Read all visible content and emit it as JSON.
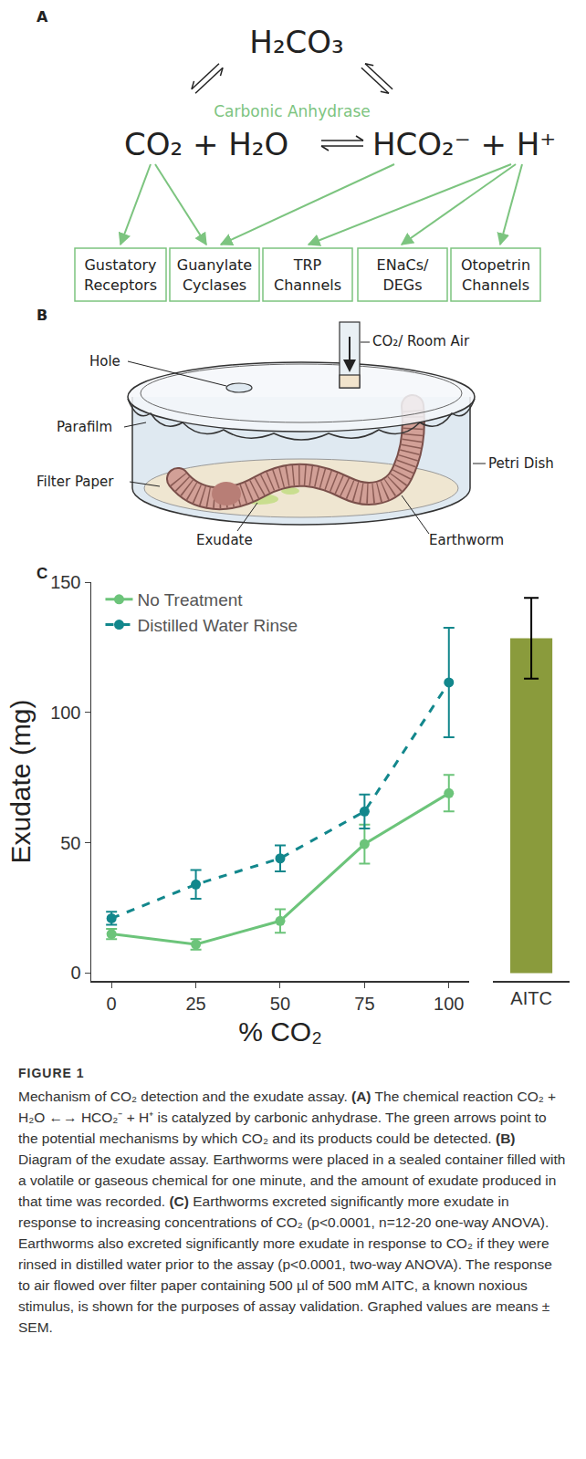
{
  "panels": {
    "A": {
      "letter": "A",
      "top_species": "H₂CO₃",
      "enzyme": "Carbonic Anhydrase",
      "left_side": "CO₂ + H₂O",
      "right_side": "HCO₂⁻ + H⁺",
      "boxes": [
        "Gustatory Receptors",
        "Guanylate Cyclases",
        "TRP Channels",
        "ENaCs/ DEGs",
        "Otopetrin Channels"
      ]
    },
    "B": {
      "letter": "B",
      "labels": {
        "hole": "Hole",
        "parafilm": "Parafilm",
        "filter_paper": "Filter Paper",
        "exudate": "Exudate",
        "gas": "CO₂/ Room Air",
        "dish": "Petri Dish",
        "worm": "Earthworm"
      }
    },
    "C": {
      "letter": "C"
    }
  },
  "chart_data": {
    "type": "line",
    "xlabel": "% CO₂",
    "ylabel": "Exudate (mg)",
    "x": [
      0,
      25,
      50,
      75,
      100
    ],
    "xlim": [
      -6,
      106
    ],
    "xticks": [
      0,
      25,
      50,
      75,
      100
    ],
    "ylim": [
      -3,
      150
    ],
    "yticks": [
      0,
      50,
      100,
      150
    ],
    "grid": false,
    "legend": "upper left",
    "series": [
      {
        "name": "No Treatment",
        "color": "#6cc47a",
        "line_style": "solid",
        "marker": "circle",
        "values": [
          15,
          11,
          20,
          49.5,
          69
        ],
        "errors": [
          2,
          2,
          4.5,
          7.5,
          7
        ]
      },
      {
        "name": "Distilled Water Rinse",
        "color": "#12878c",
        "line_style": "dashed",
        "marker": "circle",
        "values": [
          21,
          34,
          44,
          62,
          111.5
        ],
        "errors": [
          2.5,
          5.5,
          5,
          6.5,
          21
        ]
      }
    ],
    "bar": {
      "type": "bar",
      "categories": [
        "AITC"
      ],
      "values": [
        128.5
      ],
      "errors": [
        15.5
      ],
      "color": "#8a9b3c"
    }
  },
  "caption": {
    "label": "FIGURE 1",
    "segments": [
      {
        "text": "Mechanism of CO₂ detection and the exudate assay. ",
        "bold": false
      },
      {
        "text": "(A)",
        "bold": true
      },
      {
        "text": " The chemical reaction CO₂ + H₂O ←→ HCO₂⁻ + H⁺ is catalyzed by carbonic anhydrase. The green arrows point to the potential mechanisms by which CO₂ and its products could be detected. ",
        "bold": false
      },
      {
        "text": "(B)",
        "bold": true
      },
      {
        "text": " Diagram of the exudate assay. Earthworms were placed in a sealed container filled with a volatile or gaseous chemical for one minute, and the amount of exudate produced in that time was recorded. ",
        "bold": false
      },
      {
        "text": "(C)",
        "bold": true
      },
      {
        "text": " Earthworms excreted significantly more exudate in response to increasing concentrations of CO₂ (p<0.0001, n=12-20 one-way ANOVA). Earthworms also excreted significantly more exudate in response to CO₂ if they were rinsed in distilled water prior to the assay (p<0.0001, two-way ANOVA). The response to air flowed over filter paper containing 500 µl of 500 mM AITC, a known noxious stimulus, is shown for the purposes of assay validation. Graphed values are means ± SEM.",
        "bold": false
      }
    ]
  }
}
